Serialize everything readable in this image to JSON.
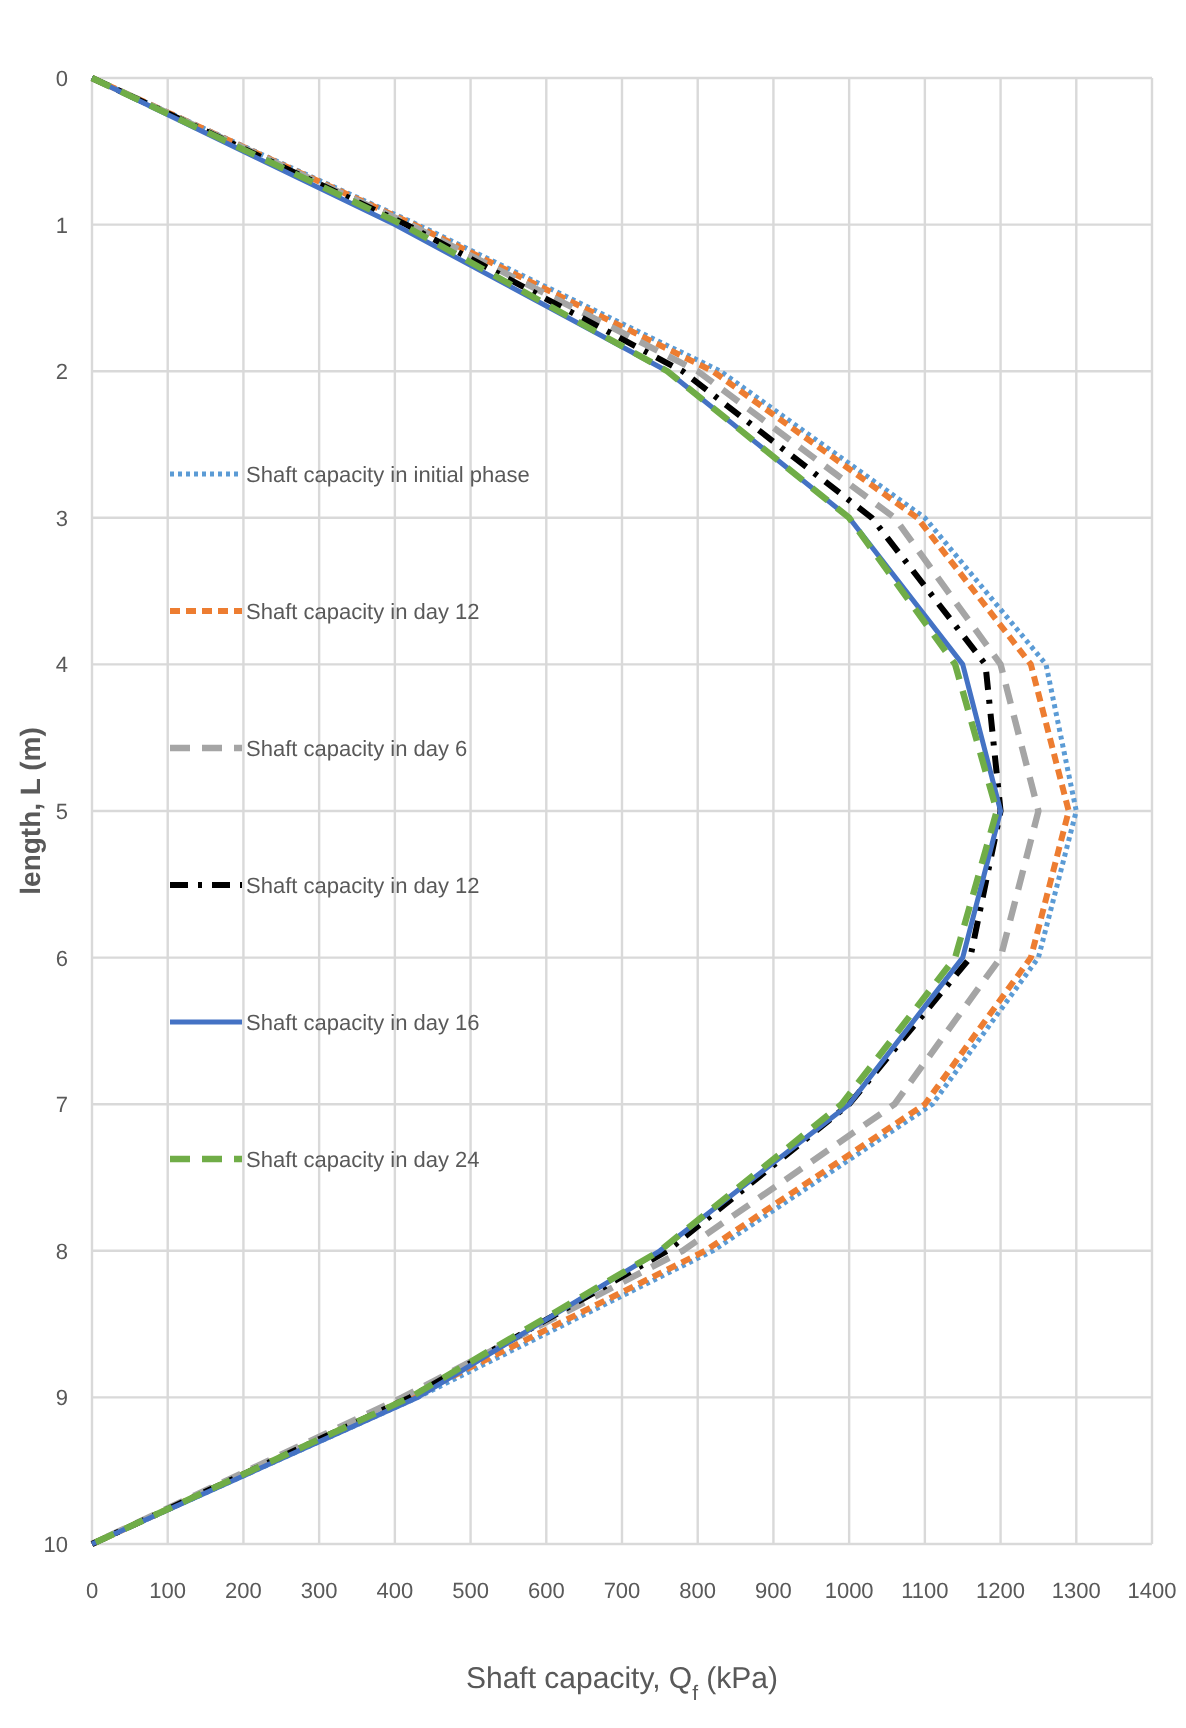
{
  "chart_data": {
    "type": "line",
    "xlabel": "Shaft capacity, Q$_{f}$ (kPa)",
    "ylabel": "length, L (m)",
    "xlim": [
      0,
      1400
    ],
    "xticks": [
      0,
      100,
      200,
      300,
      400,
      500,
      600,
      700,
      800,
      900,
      1000,
      1100,
      1200,
      1300,
      1400
    ],
    "ylim": [
      10,
      0
    ],
    "yticks": [
      0,
      1,
      2,
      3,
      4,
      5,
      6,
      7,
      8,
      9,
      10
    ],
    "grid": true,
    "legend": "left",
    "series": [
      {
        "name": "Shaft capacity in initial phase",
        "color": "#5b9bd5",
        "line_style": "dotted",
        "x": [
          0,
          430,
          830,
          1100,
          1260,
          1300,
          1250,
          1110,
          820,
          430,
          0
        ],
        "values": [
          0,
          1,
          2,
          3,
          4,
          5,
          6,
          7,
          8,
          9,
          10
        ]
      },
      {
        "name": "Shaft capacity in day 12",
        "color": "#ed7d31",
        "line_style": "dashed",
        "x": [
          0,
          425,
          820,
          1090,
          1240,
          1290,
          1240,
          1100,
          810,
          420,
          0
        ],
        "values": [
          0,
          1,
          2,
          3,
          4,
          5,
          6,
          7,
          8,
          9,
          10
        ]
      },
      {
        "name": "Shaft capacity in day 6",
        "color": "#a5a5a5",
        "line_style": "longdash",
        "x": [
          0,
          420,
          800,
          1060,
          1200,
          1250,
          1200,
          1060,
          780,
          410,
          0
        ],
        "values": [
          0,
          1,
          2,
          3,
          4,
          5,
          6,
          7,
          8,
          9,
          10
        ]
      },
      {
        "name": "Shaft capacity in day 12",
        "color": "#000000",
        "line_style": "dashdot",
        "x": [
          0,
          415,
          780,
          1030,
          1180,
          1200,
          1160,
          1000,
          760,
          420,
          0
        ],
        "values": [
          0,
          1,
          2,
          3,
          4,
          5,
          6,
          7,
          8,
          9,
          10
        ]
      },
      {
        "name": "Shaft capacity in day 16",
        "color": "#4472c4",
        "line_style": "solid",
        "x": [
          0,
          400,
          760,
          1000,
          1150,
          1200,
          1150,
          1000,
          750,
          430,
          0
        ],
        "values": [
          0,
          1,
          2,
          3,
          4,
          5,
          6,
          7,
          8,
          9,
          10
        ]
      },
      {
        "name": "Shaft capacity in day 24",
        "color": "#70ad47",
        "line_style": "longdash",
        "x": [
          0,
          410,
          760,
          1000,
          1140,
          1195,
          1140,
          990,
          750,
          420,
          0
        ],
        "values": [
          0,
          1,
          2,
          3,
          4,
          5,
          6,
          7,
          8,
          9,
          10
        ]
      }
    ]
  }
}
